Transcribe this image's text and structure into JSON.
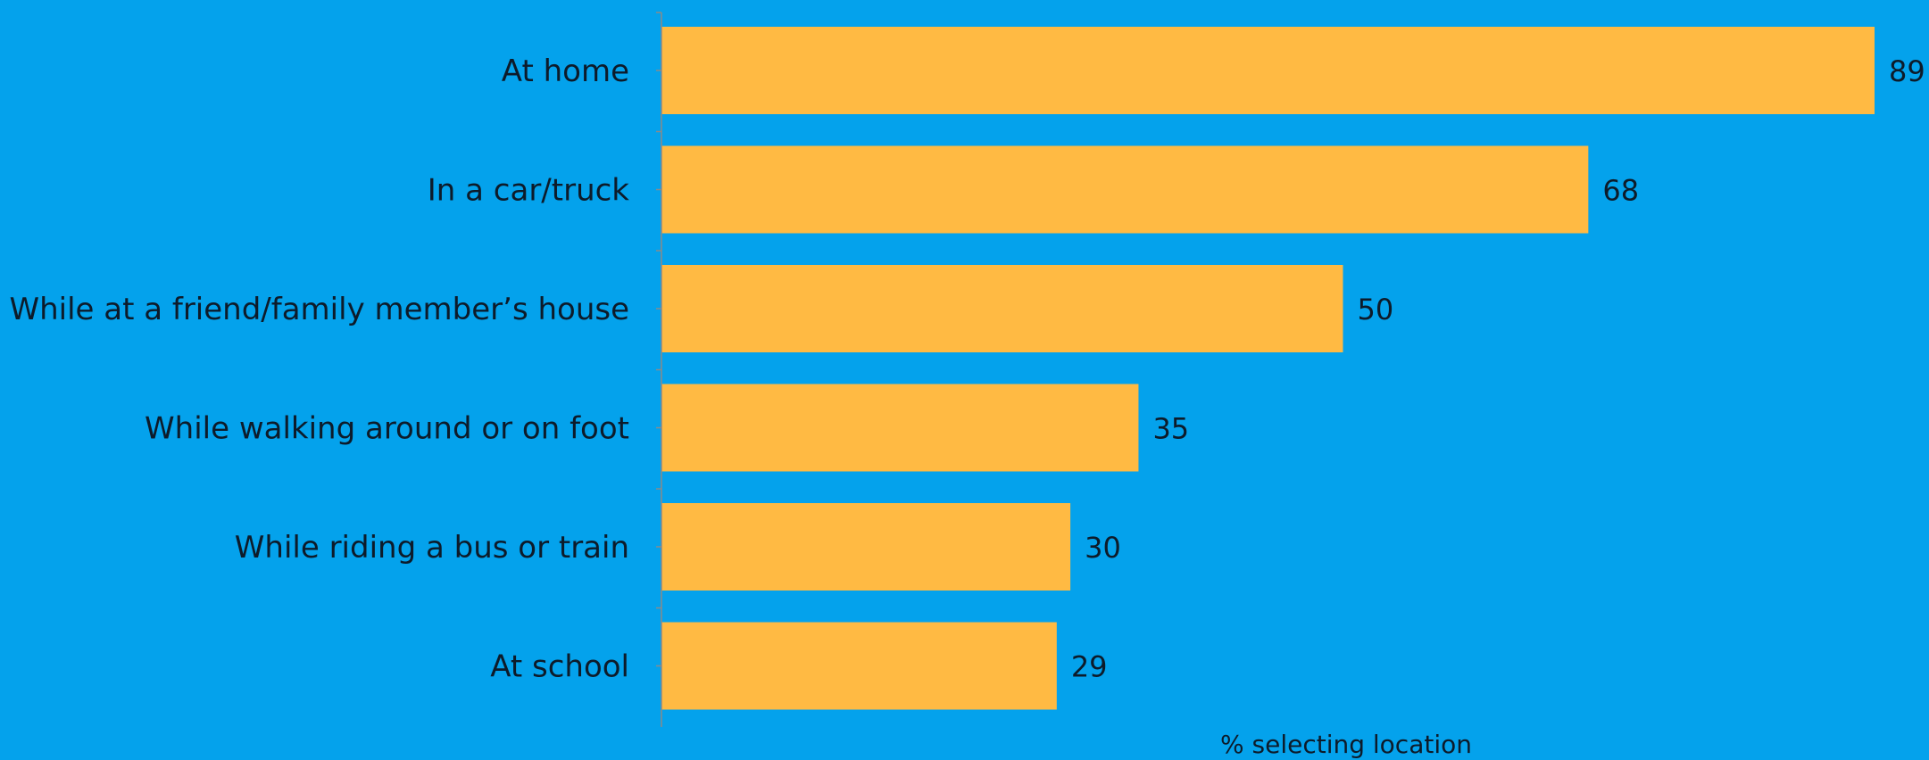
{
  "colors": {
    "background": "#04a2ec",
    "bar": "#ffba43",
    "text": "#0d1b2a",
    "axis": "#8a8a8a"
  },
  "chart_data": {
    "type": "bar",
    "orientation": "horizontal",
    "categories": [
      "At home",
      "In a car/truck",
      "While at a friend/family member’s house",
      "While walking around or on foot",
      "While riding a bus or train",
      "At school"
    ],
    "values": [
      89,
      68,
      50,
      35,
      30,
      29
    ],
    "data_labels": [
      "89",
      "68",
      "50",
      "35",
      "30",
      "29"
    ],
    "title": "",
    "xlabel": "% selecting location",
    "ylabel": "",
    "xlim": [
      0,
      89
    ],
    "grid": false,
    "legend": "none"
  }
}
